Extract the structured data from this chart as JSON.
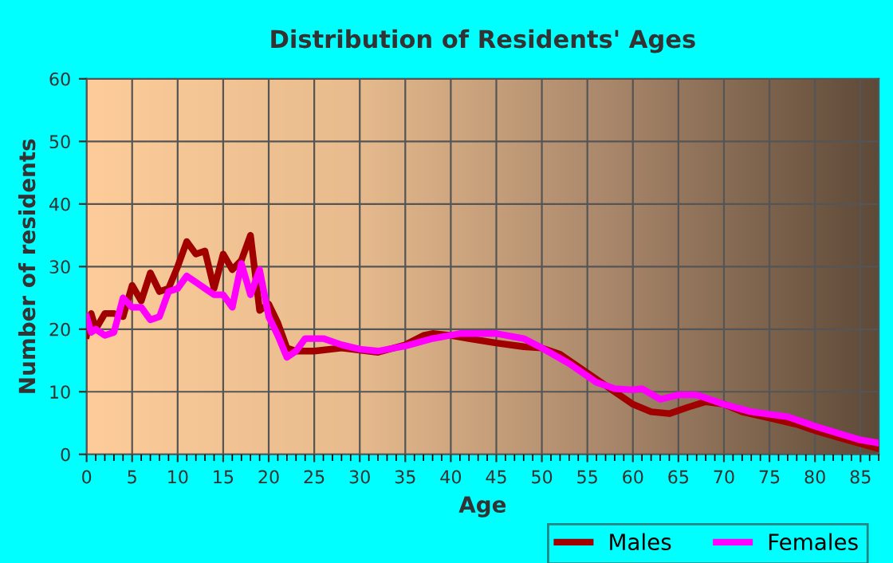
{
  "chart_data": {
    "type": "line",
    "title": "Distribution of Residents' Ages",
    "xlabel": "Age",
    "ylabel": "Number of residents",
    "xlim": [
      0,
      87
    ],
    "xticks": [
      0,
      5,
      10,
      15,
      20,
      25,
      30,
      35,
      40,
      45,
      50,
      55,
      60,
      65,
      70,
      75,
      80,
      85
    ],
    "ylim": [
      0,
      60
    ],
    "yticks": [
      0,
      10,
      20,
      30,
      40,
      50,
      60
    ],
    "grid": true,
    "legend": "bottom right",
    "marker": "none",
    "line_style": "solid",
    "series": [
      {
        "name": "Males",
        "color": "#a00000",
        "x": [
          0,
          0.5,
          1,
          2,
          3,
          4,
          5,
          6,
          7,
          8,
          9,
          10,
          11,
          12,
          13,
          14,
          15,
          16,
          17,
          18,
          19,
          20,
          21,
          22,
          23,
          25,
          28,
          32,
          35,
          37,
          38,
          40,
          42,
          45,
          48,
          50,
          52,
          55,
          57,
          60,
          62,
          64,
          66,
          68,
          70,
          72,
          75,
          78,
          80,
          83,
          87
        ],
        "values": [
          19,
          22.5,
          20,
          22.5,
          22.5,
          22,
          27,
          24.5,
          29,
          26,
          26.5,
          30,
          34,
          32,
          32.5,
          26.5,
          32,
          29.5,
          31,
          35,
          23,
          24,
          21,
          17,
          16.5,
          16.5,
          17,
          16.3,
          17.5,
          19,
          19.3,
          19,
          18.5,
          17.8,
          17.2,
          17,
          16,
          13,
          11,
          8,
          6.8,
          6.5,
          7.5,
          8.4,
          8,
          6.8,
          5.8,
          4.8,
          3.8,
          2.5,
          0.9
        ]
      },
      {
        "name": "Females",
        "color": "#ff00ff",
        "x": [
          0,
          0.5,
          1,
          2,
          3,
          4,
          5,
          6,
          7,
          8,
          9,
          10,
          11,
          12,
          13,
          14,
          15,
          16,
          17,
          18,
          19,
          20,
          21,
          22,
          23,
          24,
          26,
          28,
          30,
          32,
          35,
          38,
          41,
          45,
          48,
          50,
          53,
          56,
          58,
          60,
          61,
          63,
          65,
          67,
          70,
          73,
          77,
          80,
          85,
          87
        ],
        "values": [
          22,
          19.5,
          20,
          19,
          19.5,
          25,
          23.5,
          23.5,
          21.5,
          22,
          26,
          26.5,
          28.5,
          27.5,
          26.5,
          25.5,
          25.5,
          23.5,
          30.5,
          25.5,
          29.5,
          22,
          19,
          15.5,
          16.5,
          18.5,
          18.5,
          17.5,
          16.8,
          16.5,
          17.3,
          18.5,
          19.3,
          19.3,
          18.5,
          17,
          14.5,
          11.5,
          10.5,
          10.3,
          10.5,
          8.8,
          9.5,
          9.5,
          8,
          6.8,
          6,
          4.5,
          2.3,
          1.8
        ]
      }
    ]
  }
}
